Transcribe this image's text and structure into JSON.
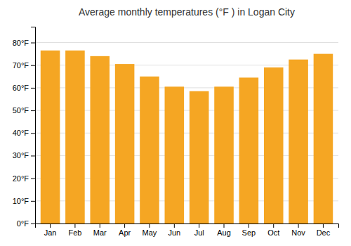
{
  "chart_data": {
    "type": "bar",
    "title": "Average monthly temperatures (°F ) in Logan City",
    "categories": [
      "Jan",
      "Feb",
      "Mar",
      "Apr",
      "May",
      "Jun",
      "Jul",
      "Aug",
      "Sep",
      "Oct",
      "Nov",
      "Dec"
    ],
    "values": [
      76.5,
      76.5,
      74,
      70.5,
      65,
      60.5,
      58.5,
      60.5,
      64.5,
      69,
      72.5,
      75
    ],
    "color": "#F5A623",
    "ylim": [
      0,
      87
    ],
    "yticks": [
      {
        "value": 0,
        "label": "0°F"
      },
      {
        "value": 10,
        "label": "10°F"
      },
      {
        "value": 20,
        "label": "20°F"
      },
      {
        "value": 30,
        "label": "30°F"
      },
      {
        "value": 40,
        "label": "40°F"
      },
      {
        "value": 50,
        "label": "50°F"
      },
      {
        "value": 60,
        "label": "60°F"
      },
      {
        "value": 70,
        "label": "70°F"
      },
      {
        "value": 80,
        "label": "80°F"
      }
    ],
    "grid": true
  }
}
